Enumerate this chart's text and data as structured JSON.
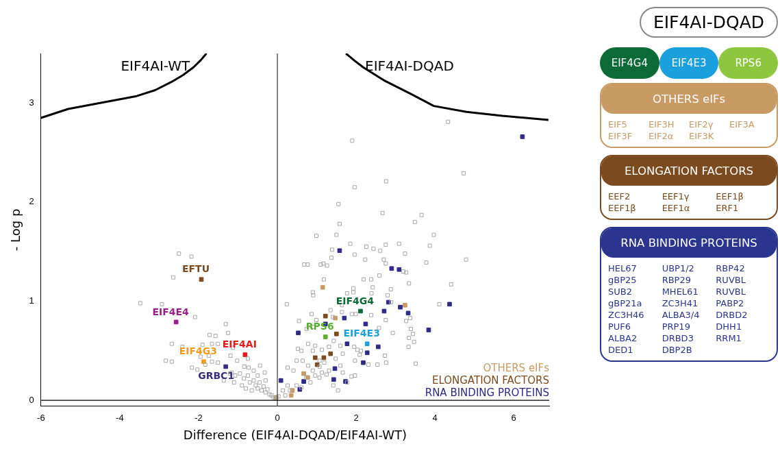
{
  "chart_data": [
    {
      "type": "scatter",
      "xlabel": "Difference (EIF4AI-DQAD/EIF4AI-WT)",
      "ylabel": "- Log p",
      "xlim": [
        -6,
        6.9
      ],
      "ylim": [
        -0.06,
        3.5
      ],
      "xticks": [
        -6,
        -4,
        -2,
        0,
        2,
        4,
        6
      ],
      "yticks": [
        0,
        1,
        2,
        3
      ],
      "grid": false,
      "marker": "square",
      "legend": "bottom right",
      "annotations": [
        "EIF4AI-WT",
        "EIF4AI-DQAD"
      ],
      "ref_lines": [
        {
          "axis": "x",
          "value": 0,
          "color": "#444444"
        },
        {
          "axis": "y",
          "value": 0,
          "color": "#000000"
        }
      ],
      "series": [
        {
          "type": "line",
          "marker": "none",
          "color": "#000000",
          "x": [
            -6,
            -5.31,
            -4.5,
            -3.57,
            -3.1,
            -2.7,
            -2.4,
            -2.13,
            -1.95,
            -1.8
          ],
          "values": [
            2.85,
            2.94,
            3.0,
            3.07,
            3.13,
            3.21,
            3.28,
            3.36,
            3.43,
            3.5
          ]
        },
        {
          "type": "line",
          "marker": "none",
          "color": "#000000",
          "x": [
            1.74,
            1.95,
            2.18,
            2.7,
            3.4,
            3.97,
            4.8,
            5.71,
            6.88
          ],
          "values": [
            3.5,
            3.43,
            3.36,
            3.23,
            3.09,
            2.97,
            2.91,
            2.87,
            2.83
          ]
        },
        {
          "color": "#a6a6a6",
          "x": [
            -2.5,
            -2.18,
            -2.64,
            -3.48,
            -2.93,
            -2.09,
            -1.31,
            -1.25,
            -1.72,
            -1.57,
            -1.66,
            -1.51,
            -2.68,
            -2.41,
            -1.9,
            -1.13,
            -2.83,
            -2.68,
            -1.95,
            -1.74,
            -1.19,
            -0.75,
            -1.66,
            -1.51,
            -1.83,
            -2.17,
            -2.03,
            -1.02,
            -0.84,
            -0.73,
            -1.16,
            -1.36,
            -1.07,
            -0.95,
            -0.85,
            -0.75,
            -0.7,
            -0.6,
            -0.55,
            -0.5,
            -0.45,
            -0.4,
            -0.35,
            -0.3,
            -0.25,
            -0.2,
            -0.15,
            -0.1,
            -0.05,
            -0.65,
            -0.9,
            -0.8,
            -1.1,
            -1.2,
            -0.6,
            -0.5,
            -0.3,
            -0.44,
            -0.32,
            4.33,
            1.9,
            4.73,
            2.76,
            1.96,
            1.55,
            2.67,
            3.66,
            3.49,
            1.58,
            3.97,
            0.99,
            1.5,
            3.87,
            1.85,
            2.26,
            2.44,
            2.61,
            2.75,
            3.09,
            1.39,
            3.24,
            1.96,
            1.37,
            4.79,
            2.23,
            2.7,
            2.75,
            3.78,
            0.68,
            0.77,
            1.1,
            1.17,
            1.26,
            3.2,
            3.27,
            2.59,
            1.18,
            2.19,
            2.38,
            3.34,
            4.41,
            1.93,
            2.42,
            2.88,
            0.24,
            4.11,
            0.9,
            0.91,
            1.77,
            1.93,
            2.39,
            2.8,
            2.89,
            0.55,
            0.74,
            0.92,
            0.87,
            0.99,
            1.35,
            1.41,
            1.64,
            1.64,
            1.89,
            1.99,
            2.38,
            2.75,
            2.58,
            2.93,
            3.27,
            3.37,
            3.39,
            3.44,
            3.34,
            3.47,
            3.33,
            3.51,
            2.76,
            2.54,
            2.31,
            2.73,
            2.09,
            1.95,
            2.03,
            2.12,
            1.6,
            1.66,
            1.43,
            1.97,
            1.88,
            1.25,
            1.31,
            1.07,
            1.13,
            0.26,
            0.41,
            0.49,
            0.64,
            0.52,
            0.61,
            0.78,
            0.9,
            0.96,
            1.13,
            1.31,
            1.07,
            1.19,
            0.78,
            0.9,
            0.73,
            0.84,
            0.49,
            0.61,
            0.26,
            0.32,
            0.14,
            0.2,
            0.03,
            0.96,
            1.07,
            1.48,
            1.6,
            1.66,
            1.77,
            1.42,
            1.54,
            1.97
          ],
          "values": [
            1.48,
            1.45,
            1.24,
            0.98,
            0.97,
            0.84,
            0.77,
            0.68,
            0.66,
            0.65,
            0.57,
            0.57,
            0.57,
            0.54,
            0.56,
            0.53,
            0.4,
            0.39,
            0.44,
            0.45,
            0.45,
            0.42,
            0.39,
            0.38,
            0.36,
            0.33,
            0.31,
            0.4,
            0.34,
            0.33,
            0.28,
            0.2,
            0.25,
            0.27,
            0.22,
            0.25,
            0.18,
            0.2,
            0.15,
            0.12,
            0.18,
            0.1,
            0.14,
            0.08,
            0.11,
            0.06,
            0.05,
            0.03,
            0.02,
            0.1,
            0.15,
            0.12,
            0.18,
            0.27,
            0.3,
            0.25,
            0.2,
            0.35,
            0.28,
            2.81,
            2.62,
            2.29,
            2.21,
            2.15,
            1.98,
            1.89,
            1.87,
            1.8,
            1.78,
            1.67,
            1.66,
            1.67,
            1.56,
            1.58,
            1.55,
            1.53,
            1.51,
            1.57,
            1.58,
            1.52,
            1.48,
            1.47,
            1.44,
            1.42,
            1.42,
            1.42,
            1.38,
            1.39,
            1.37,
            1.37,
            1.37,
            1.38,
            1.36,
            1.3,
            1.29,
            1.26,
            1.22,
            1.22,
            1.22,
            1.18,
            1.17,
            1.13,
            1.14,
            1.12,
            0.97,
            0.97,
            1.09,
            1.06,
            1.08,
            1.09,
            1.08,
            1.06,
            0.99,
            0.8,
            0.72,
            0.74,
            0.87,
            0.81,
            0.91,
            0.84,
            0.96,
            0.89,
            0.87,
            0.87,
            0.86,
            0.81,
            0.73,
            0.68,
            0.8,
            0.83,
            0.72,
            0.67,
            0.63,
            0.59,
            0.54,
            0.37,
            0.38,
            0.36,
            0.36,
            0.45,
            0.46,
            0.54,
            0.51,
            0.5,
            0.55,
            0.47,
            0.6,
            0.25,
            0.24,
            0.26,
            0.3,
            0.34,
            0.28,
            0.33,
            0.3,
            0.4,
            0.4,
            0.52,
            0.5,
            0.57,
            0.5,
            0.55,
            0.51,
            0.54,
            0.4,
            0.38,
            0.35,
            0.3,
            0.23,
            0.18,
            0.15,
            0.13,
            0.15,
            0.1,
            0.1,
            0.05,
            0.04,
            0.25,
            0.23,
            0.42,
            0.35,
            0.28,
            0.18,
            0.15,
            0.1,
            0.4
          ]
        },
        {
          "name": "OTHERS eIFs",
          "color": "#c89a64",
          "x": [
            1.15,
            1.47,
            3.24,
            0.67,
            0.77,
            0.38,
            0.35,
            -0.03
          ],
          "values": [
            1.14,
            0.83,
            0.96,
            0.27,
            0.23,
            0.1,
            0.05,
            0.03
          ]
        },
        {
          "name": "ELONGATION FACTORS",
          "color": "#7b4a1e",
          "x": [
            1.22,
            1.5,
            0.96,
            1.18,
            1.35,
            1.01
          ],
          "values": [
            0.85,
            0.67,
            0.43,
            0.43,
            0.47,
            0.36
          ]
        },
        {
          "name": "RNA BINDING PROTEINS",
          "color": "#2e2a86",
          "x": [
            1.58,
            2.9,
            3.09,
            2.82,
            3.12,
            3.32,
            2.71,
            1.7,
            1.22,
            2.24,
            3.84,
            4.37,
            0.53,
            1.77,
            2.56,
            2.28,
            2.18,
            1.46,
            0.67,
            1.43,
            1.73,
            0.09,
            0.57,
            6.22
          ],
          "values": [
            1.51,
            1.33,
            1.32,
            0.99,
            0.94,
            0.88,
            0.9,
            0.83,
            0.77,
            0.77,
            0.71,
            0.97,
            0.68,
            0.57,
            0.54,
            0.48,
            0.38,
            0.32,
            0.19,
            0.21,
            0.19,
            0.2,
            0.11,
            2.66
          ]
        },
        {
          "name": "EFTU",
          "color": "#7b4a1e",
          "x": [
            -1.93
          ],
          "values": [
            1.22
          ]
        },
        {
          "name": "EIF4E4",
          "color": "#9b1f8a",
          "x": [
            -2.57
          ],
          "values": [
            0.79
          ]
        },
        {
          "name": "EIF4AI",
          "color": "#e31b1b",
          "x": [
            -0.82
          ],
          "values": [
            0.46
          ]
        },
        {
          "name": "EIF4G3",
          "color": "#f39a1e",
          "x": [
            -1.87
          ],
          "values": [
            0.39
          ]
        },
        {
          "name": "GRBC1",
          "color": "#3b2d7e",
          "x": [
            -1.31
          ],
          "values": [
            0.34
          ]
        },
        {
          "name": "EIF4G4",
          "color": "#0b6a35",
          "x": [
            2.11
          ],
          "values": [
            0.9
          ]
        },
        {
          "name": "RPS6",
          "color": "#5ab031",
          "x": [
            1.22
          ],
          "values": [
            0.64
          ]
        },
        {
          "name": "EIF4E3",
          "color": "#1aa0dc",
          "x": [
            2.28
          ],
          "values": [
            0.57
          ]
        }
      ]
    },
    {
      "type": "other",
      "title": "EIF4AI-DQAD",
      "categories": [
        "EIF4G4",
        "EIF4E3",
        "RPS6"
      ],
      "colors": [
        "#0b6a35",
        "#1aa0dc",
        "#8dc63f"
      ]
    },
    {
      "type": "other",
      "title": "OTHERS eIFs",
      "color": "#c89a64",
      "annotations": [
        "EIF5",
        "EIF3H",
        "EIF2γ",
        "EIF3A",
        "EIF3F",
        "EIF2α",
        "EIF3K"
      ]
    },
    {
      "type": "other",
      "title": "ELONGATION FACTORS",
      "color": "#7b4a1e",
      "annotations": [
        "EEF2",
        "EEF1γ",
        "EEF1β",
        "EEF1β",
        "EEF1α",
        "ERF1"
      ]
    },
    {
      "type": "other",
      "title": "RNA BINDING PROTEINS",
      "color": "#2a3590",
      "annotations": [
        "HEL67",
        "UBP1/2",
        "RBP42",
        "gBP25",
        "RBP29",
        "RUVBL",
        "SUB2",
        "MHEL61",
        "RUVBL",
        "gBP21a",
        "ZC3H41",
        "PABP2",
        "ZC3H46",
        "ALBA3/4",
        "DRBD2",
        "PUF6",
        "PRP19",
        "DHH1",
        "ALBA2",
        "DRBD3",
        "RRM1",
        "DED1",
        "DBP2B"
      ]
    }
  ]
}
